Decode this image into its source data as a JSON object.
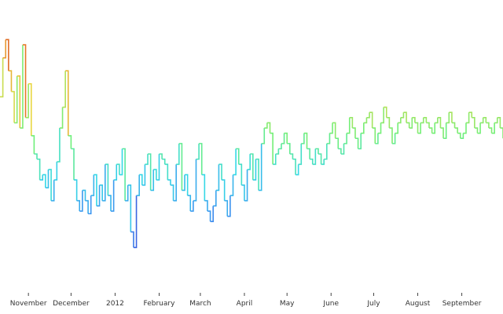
{
  "chart_data": {
    "type": "line",
    "step": "post",
    "title": "",
    "xlabel": "",
    "ylabel": "",
    "show_y_axis": false,
    "grid": false,
    "legend": "none",
    "colormap": "rainbow by value (blue low, green mid, red high)",
    "colors": {
      "low": "#3a3fd6",
      "mid_low": "#35d8e6",
      "mid": "#6ef07a",
      "mid_high": "#e8d640",
      "high": "#cc3a1a"
    },
    "xlim": [
      "2011-10-12",
      "2012-09-30"
    ],
    "ylim": [
      0,
      100
    ],
    "x_ticks": [
      {
        "date": "2011-11-01",
        "label": "November"
      },
      {
        "date": "2011-12-01",
        "label": "December"
      },
      {
        "date": "2012-01-01",
        "label": "2012"
      },
      {
        "date": "2012-02-01",
        "label": "February"
      },
      {
        "date": "2012-03-01",
        "label": "March"
      },
      {
        "date": "2012-04-01",
        "label": "April"
      },
      {
        "date": "2012-05-01",
        "label": "May"
      },
      {
        "date": "2012-06-01",
        "label": "June"
      },
      {
        "date": "2012-07-01",
        "label": "July"
      },
      {
        "date": "2012-08-01",
        "label": "August"
      },
      {
        "date": "2012-09-01",
        "label": "September"
      }
    ],
    "series": [
      {
        "x": [
          "2011-10-12",
          "2011-10-14",
          "2011-10-16",
          "2011-10-18",
          "2011-10-20",
          "2011-10-22",
          "2011-10-24",
          "2011-10-26",
          "2011-10-28",
          "2011-10-30",
          "2011-11-01",
          "2011-11-03",
          "2011-11-05",
          "2011-11-07",
          "2011-11-09",
          "2011-11-11",
          "2011-11-13",
          "2011-11-15",
          "2011-11-17",
          "2011-11-19",
          "2011-11-21",
          "2011-11-23",
          "2011-11-25",
          "2011-11-27",
          "2011-11-29",
          "2011-12-01",
          "2011-12-03",
          "2011-12-05",
          "2011-12-07",
          "2011-12-09",
          "2011-12-11",
          "2011-12-13",
          "2011-12-15",
          "2011-12-17",
          "2011-12-19",
          "2011-12-21",
          "2011-12-23",
          "2011-12-25",
          "2011-12-27",
          "2011-12-29",
          "2011-12-31",
          "2012-01-02",
          "2012-01-04",
          "2012-01-06",
          "2012-01-08",
          "2012-01-10",
          "2012-01-12",
          "2012-01-14",
          "2012-01-16",
          "2012-01-18",
          "2012-01-20",
          "2012-01-22",
          "2012-01-24",
          "2012-01-26",
          "2012-01-28",
          "2012-01-30",
          "2012-02-01",
          "2012-02-03",
          "2012-02-05",
          "2012-02-07",
          "2012-02-09",
          "2012-02-11",
          "2012-02-13",
          "2012-02-15",
          "2012-02-17",
          "2012-02-19",
          "2012-02-21",
          "2012-02-23",
          "2012-02-25",
          "2012-02-27",
          "2012-02-29",
          "2012-03-02",
          "2012-03-04",
          "2012-03-06",
          "2012-03-08",
          "2012-03-10",
          "2012-03-12",
          "2012-03-14",
          "2012-03-16",
          "2012-03-18",
          "2012-03-20",
          "2012-03-22",
          "2012-03-24",
          "2012-03-26",
          "2012-03-28",
          "2012-03-30",
          "2012-04-01",
          "2012-04-03",
          "2012-04-05",
          "2012-04-07",
          "2012-04-09",
          "2012-04-11",
          "2012-04-13",
          "2012-04-15",
          "2012-04-17",
          "2012-04-19",
          "2012-04-21",
          "2012-04-23",
          "2012-04-25",
          "2012-04-27",
          "2012-04-29",
          "2012-05-01",
          "2012-05-03",
          "2012-05-05",
          "2012-05-07",
          "2012-05-09",
          "2012-05-11",
          "2012-05-13",
          "2012-05-15",
          "2012-05-17",
          "2012-05-19",
          "2012-05-21",
          "2012-05-23",
          "2012-05-25",
          "2012-05-27",
          "2012-05-29",
          "2012-05-31",
          "2012-06-02",
          "2012-06-04",
          "2012-06-06",
          "2012-06-08",
          "2012-06-10",
          "2012-06-12",
          "2012-06-14",
          "2012-06-16",
          "2012-06-18",
          "2012-06-20",
          "2012-06-22",
          "2012-06-24",
          "2012-06-26",
          "2012-06-28",
          "2012-06-30",
          "2012-07-02",
          "2012-07-04",
          "2012-07-06",
          "2012-07-08",
          "2012-07-10",
          "2012-07-12",
          "2012-07-14",
          "2012-07-16",
          "2012-07-18",
          "2012-07-20",
          "2012-07-22",
          "2012-07-24",
          "2012-07-26",
          "2012-07-28",
          "2012-07-30",
          "2012-08-01",
          "2012-08-03",
          "2012-08-05",
          "2012-08-07",
          "2012-08-09",
          "2012-08-11",
          "2012-08-13",
          "2012-08-15",
          "2012-08-17",
          "2012-08-19",
          "2012-08-21",
          "2012-08-23",
          "2012-08-25",
          "2012-08-27",
          "2012-08-29",
          "2012-08-31",
          "2012-09-02",
          "2012-09-04",
          "2012-09-06",
          "2012-09-08",
          "2012-09-10",
          "2012-09-12",
          "2012-09-14",
          "2012-09-16",
          "2012-09-18",
          "2012-09-20",
          "2012-09-22",
          "2012-09-24",
          "2012-09-26",
          "2012-09-28",
          "2012-09-30"
        ],
        "y": [
          70,
          85,
          92,
          80,
          72,
          60,
          78,
          58,
          90,
          62,
          75,
          55,
          48,
          46,
          38,
          40,
          35,
          42,
          30,
          38,
          45,
          58,
          66,
          80,
          55,
          50,
          38,
          30,
          26,
          34,
          30,
          25,
          32,
          40,
          28,
          36,
          30,
          44,
          32,
          26,
          38,
          44,
          40,
          50,
          30,
          36,
          18,
          12,
          32,
          40,
          36,
          44,
          48,
          34,
          42,
          38,
          48,
          46,
          44,
          38,
          36,
          30,
          44,
          52,
          34,
          40,
          32,
          26,
          30,
          46,
          52,
          40,
          30,
          26,
          22,
          28,
          34,
          44,
          38,
          30,
          24,
          32,
          40,
          50,
          44,
          36,
          30,
          42,
          48,
          38,
          46,
          34,
          52,
          58,
          60,
          56,
          44,
          48,
          50,
          52,
          56,
          52,
          48,
          46,
          40,
          44,
          52,
          56,
          50,
          46,
          44,
          50,
          48,
          44,
          46,
          52,
          56,
          60,
          54,
          50,
          48,
          52,
          56,
          62,
          58,
          54,
          50,
          56,
          60,
          62,
          64,
          58,
          52,
          56,
          60,
          66,
          62,
          58,
          52,
          56,
          60,
          62,
          64,
          60,
          58,
          62,
          60,
          56,
          60,
          62,
          60,
          58,
          56,
          60,
          62,
          58,
          54,
          60,
          64,
          60,
          58,
          56,
          54,
          56,
          60,
          64,
          62,
          58,
          56,
          60,
          62,
          60,
          58,
          56,
          60,
          62,
          58,
          54
        ]
      }
    ]
  }
}
